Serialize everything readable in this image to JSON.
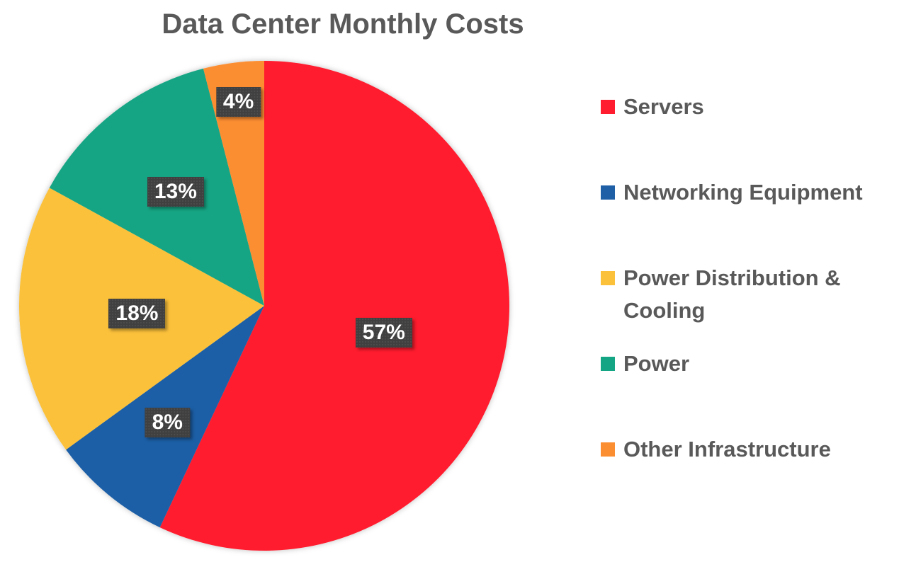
{
  "chart_data": {
    "type": "pie",
    "title": "Data Center Monthly Costs",
    "start_angle": "12 o'clock, clockwise",
    "legend_position": "right",
    "slices": [
      {
        "name": "Servers",
        "value": 57,
        "label": "57%",
        "color": "#FF1C2E"
      },
      {
        "name": "Networking Equipment",
        "value": 8,
        "label": "8%",
        "color": "#1F5FA6"
      },
      {
        "name": "Power Distribution & Cooling",
        "value": 18,
        "label": "18%",
        "color": "#FBC13A"
      },
      {
        "name": "Power",
        "value": 13,
        "label": "13%",
        "color": "#13A584"
      },
      {
        "name": "Other Infrastructure",
        "value": 4,
        "label": "4%",
        "color": "#FC8E32"
      }
    ]
  }
}
